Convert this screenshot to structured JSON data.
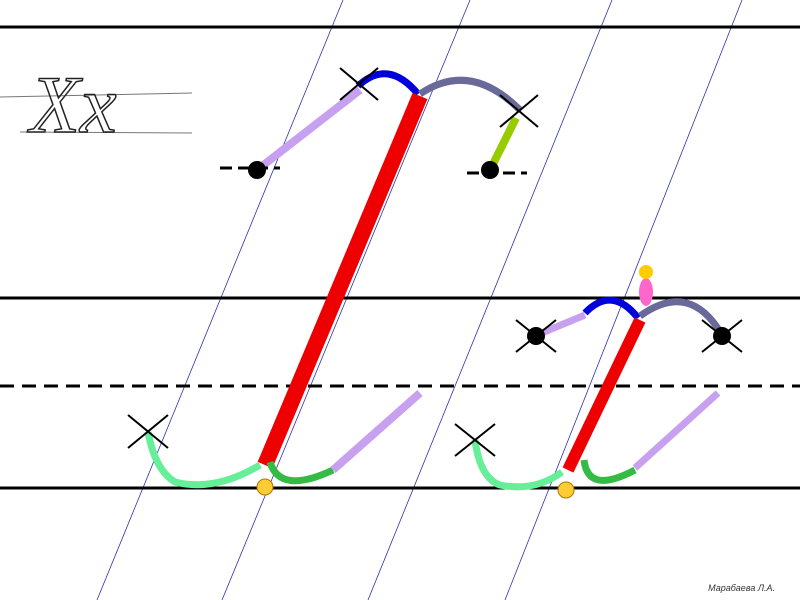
{
  "sample": "Xx",
  "author": "Марабаева Л.А."
}
